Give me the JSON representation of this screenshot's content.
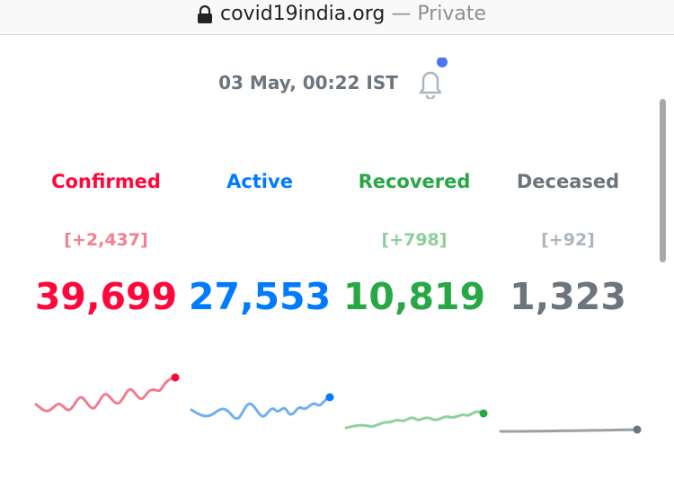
{
  "browser": {
    "url": "covid19india.org",
    "mode": "— Private"
  },
  "timestamp": "03 May, 00:22 IST",
  "stats": [
    {
      "label": "Confirmed",
      "delta": "[+2,437]",
      "total": "39,699"
    },
    {
      "label": "Active",
      "total": "27,553"
    },
    {
      "label": "Recovered",
      "delta": "[+798]",
      "total": "10,819"
    },
    {
      "label": "Deceased",
      "delta": "[+92]",
      "total": "1,323"
    }
  ]
}
